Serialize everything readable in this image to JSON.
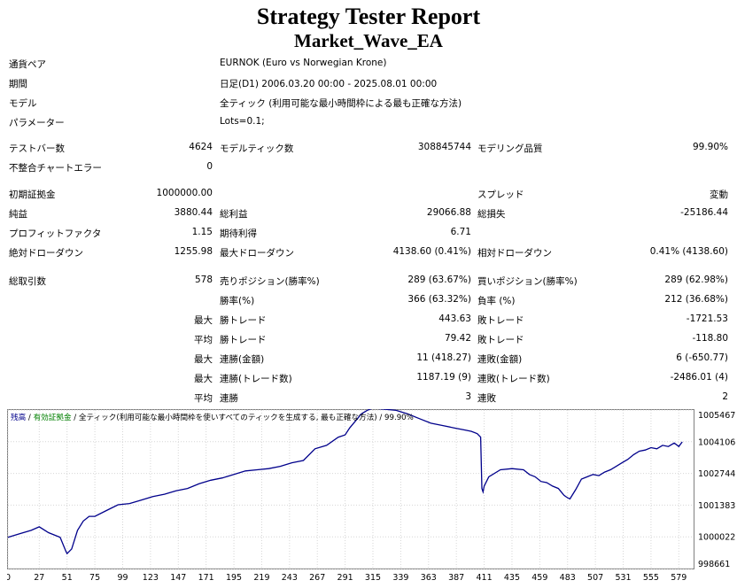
{
  "report": {
    "title": "Strategy Tester Report",
    "subtitle": "Market_Wave_EA"
  },
  "info": [
    {
      "label": "通貨ペア",
      "value": "EURNOK (Euro vs Norwegian Krone)"
    },
    {
      "label": "期間",
      "value": "日足(D1) 2006.03.20 00:00 - 2025.08.01 00:00"
    },
    {
      "label": "モデル",
      "value": "全ティック (利用可能な最小時間枠による最も正確な方法)"
    },
    {
      "label": "パラメーター",
      "value": "Lots=0.1;"
    }
  ],
  "stats": {
    "bars_label": "テストバー数",
    "bars_value": "4624",
    "ticks_label": "モデルティック数",
    "ticks_value": "308845744",
    "quality_label": "モデリング品質",
    "quality_value": "99.90%",
    "mismatch_label": "不整合チャートエラー",
    "mismatch_value": "0",
    "deposit_label": "初期証拠金",
    "deposit_value": "1000000.00",
    "spread_label": "スプレッド",
    "spread_value": "変動",
    "net_label": "純益",
    "net_value": "3880.44",
    "gross_profit_label": "総利益",
    "gross_profit_value": "29066.88",
    "gross_loss_label": "総損失",
    "gross_loss_value": "-25186.44",
    "pf_label": "プロフィットファクタ",
    "pf_value": "1.15",
    "expected_label": "期待利得",
    "expected_value": "6.71",
    "abs_dd_label": "絶対ドローダウン",
    "abs_dd_value": "1255.98",
    "max_dd_label": "最大ドローダウン",
    "max_dd_value": "4138.60 (0.41%)",
    "rel_dd_label": "相対ドローダウン",
    "rel_dd_value": "0.41% (4138.60)",
    "trades_label": "総取引数",
    "trades_value": "578",
    "short_label": "売りポジション(勝率%)",
    "short_value": "289 (63.67%)",
    "long_label": "買いポジション(勝率%)",
    "long_value": "289 (62.98%)",
    "win_label": "勝率(%)",
    "win_value": "366 (63.32%)",
    "loss_label": "負率 (%)",
    "loss_value": "212 (36.68%)",
    "max_word": "最大",
    "avg_word": "平均",
    "lg_win_label": "勝トレード",
    "lg_win_value": "443.63",
    "lg_loss_label": "敗トレード",
    "lg_loss_value": "-1721.53",
    "av_win_label": "勝トレード",
    "av_win_value": "79.42",
    "av_loss_label": "敗トレード",
    "av_loss_value": "-118.80",
    "mcw_label": "連勝(金額)",
    "mcw_value": "11 (418.27)",
    "mcl_label": "連敗(金額)",
    "mcl_value": "6 (-650.77)",
    "mcp_label": "連勝(トレード数)",
    "mcp_value": "1187.19 (9)",
    "mcls_label": "連敗(トレード数)",
    "mcls_value": "-2486.01 (4)",
    "acw_label": "連勝",
    "acw_value": "3",
    "acl_label": "連敗",
    "acl_value": "2"
  },
  "chart_data": {
    "type": "line",
    "legend": {
      "balance": "残高",
      "sep1": " / ",
      "margin": "有効証拠金",
      "sep2": " / ",
      "model": "全ティック(利用可能な最小時間枠を使いすべてのティックを生成する, 最も正確な方法)",
      "sep3": " / ",
      "quality": "99.90%"
    },
    "x_ticks": [
      0,
      27,
      51,
      75,
      99,
      123,
      147,
      171,
      195,
      219,
      243,
      267,
      291,
      315,
      339,
      363,
      387,
      411,
      435,
      459,
      483,
      507,
      531,
      555,
      579
    ],
    "y_ticks": [
      "1005467",
      "1004106",
      "1002744",
      "1001383",
      "1000022",
      "998661"
    ],
    "xlim": [
      0,
      591
    ],
    "ylim": [
      998661,
      1005467
    ],
    "series": [
      {
        "color": "#00008b",
        "x": [
          0,
          10,
          20,
          27,
          35,
          45,
          50,
          51,
          55,
          60,
          65,
          70,
          75,
          85,
          95,
          105,
          115,
          125,
          135,
          145,
          155,
          165,
          175,
          185,
          195,
          205,
          215,
          225,
          235,
          245,
          255,
          265,
          275,
          285,
          291,
          295,
          300,
          305,
          310,
          315,
          325,
          335,
          345,
          355,
          365,
          375,
          385,
          395,
          400,
          405,
          408,
          409,
          410,
          411,
          415,
          425,
          435,
          445,
          450,
          455,
          460,
          465,
          470,
          475,
          480,
          483,
          485,
          490,
          495,
          500,
          505,
          510,
          515,
          520,
          525,
          530,
          535,
          540,
          545,
          550,
          555,
          560,
          565,
          570,
          575,
          579,
          582
        ],
        "y": [
          1000000,
          1000150,
          1000300,
          1000450,
          1000200,
          1000000,
          999400,
          999300,
          999500,
          1000300,
          1000700,
          1000900,
          1000900,
          1001150,
          1001400,
          1001450,
          1001600,
          1001750,
          1001850,
          1002000,
          1002100,
          1002300,
          1002450,
          1002550,
          1002700,
          1002850,
          1002900,
          1002950,
          1003050,
          1003200,
          1003300,
          1003800,
          1003950,
          1004300,
          1004400,
          1004700,
          1005000,
          1005300,
          1005450,
          1005550,
          1005500,
          1005450,
          1005300,
          1005100,
          1004900,
          1004800,
          1004700,
          1004600,
          1004550,
          1004450,
          1004300,
          1002100,
          1001950,
          1002200,
          1002600,
          1002900,
          1002950,
          1002900,
          1002700,
          1002600,
          1002400,
          1002350,
          1002200,
          1002100,
          1001800,
          1001700,
          1001650,
          1002050,
          1002500,
          1002600,
          1002700,
          1002650,
          1002800,
          1002900,
          1003050,
          1003200,
          1003350,
          1003550,
          1003700,
          1003750,
          1003850,
          1003800,
          1003950,
          1003900,
          1004050,
          1003900,
          1004100
        ]
      }
    ]
  }
}
